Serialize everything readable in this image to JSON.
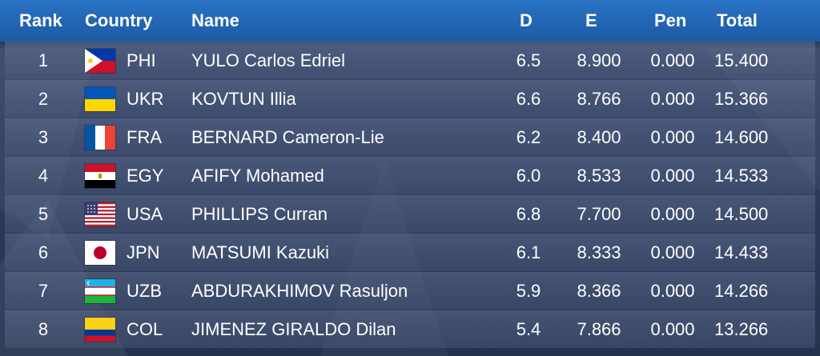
{
  "header": {
    "rank": "Rank",
    "country": "Country",
    "name": "Name",
    "d": "D",
    "e": "E",
    "pen": "Pen",
    "total": "Total"
  },
  "rows": [
    {
      "rank": "1",
      "code": "PHI",
      "name": "YULO Carlos Edriel",
      "d": "6.5",
      "e": "8.900",
      "pen": "0.000",
      "total": "15.400",
      "flag": "philippines-flag-icon"
    },
    {
      "rank": "2",
      "code": "UKR",
      "name": "KOVTUN Illia",
      "d": "6.6",
      "e": "8.766",
      "pen": "0.000",
      "total": "15.366",
      "flag": "ukraine-flag-icon"
    },
    {
      "rank": "3",
      "code": "FRA",
      "name": "BERNARD Cameron-Lie",
      "d": "6.2",
      "e": "8.400",
      "pen": "0.000",
      "total": "14.600",
      "flag": "france-flag-icon"
    },
    {
      "rank": "4",
      "code": "EGY",
      "name": "AFIFY Mohamed",
      "d": "6.0",
      "e": "8.533",
      "pen": "0.000",
      "total": "14.533",
      "flag": "egypt-flag-icon"
    },
    {
      "rank": "5",
      "code": "USA",
      "name": "PHILLIPS Curran",
      "d": "6.8",
      "e": "7.700",
      "pen": "0.000",
      "total": "14.500",
      "flag": "usa-flag-icon"
    },
    {
      "rank": "6",
      "code": "JPN",
      "name": "MATSUMI Kazuki",
      "d": "6.1",
      "e": "8.333",
      "pen": "0.000",
      "total": "14.433",
      "flag": "japan-flag-icon"
    },
    {
      "rank": "7",
      "code": "UZB",
      "name": "ABDURAKHIMOV Rasuljon",
      "d": "5.9",
      "e": "8.366",
      "pen": "0.000",
      "total": "14.266",
      "flag": "uzbekistan-flag-icon"
    },
    {
      "rank": "8",
      "code": "COL",
      "name": "JIMENEZ GIRALDO Dilan",
      "d": "5.4",
      "e": "7.866",
      "pen": "0.000",
      "total": "13.266",
      "flag": "colombia-flag-icon"
    }
  ],
  "colors": {
    "header_blue": "#1f63b3",
    "row_bg": "#4a5a7e"
  }
}
